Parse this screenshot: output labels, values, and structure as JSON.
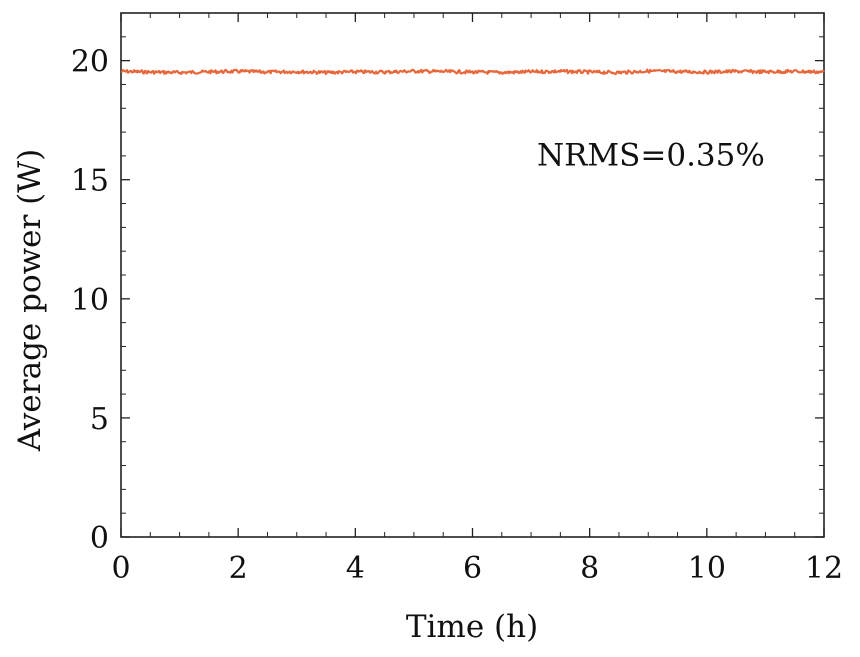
{
  "chart_data": {
    "type": "line",
    "title": "",
    "xlabel": "Time (h)",
    "ylabel": "Average power (W)",
    "xlim": [
      0,
      12
    ],
    "ylim": [
      0,
      22
    ],
    "xticks": [
      0,
      2,
      4,
      6,
      8,
      10,
      12
    ],
    "xtick_labels": [
      "0",
      "2",
      "4",
      "6",
      "8",
      "10",
      "12"
    ],
    "yticks": [
      0,
      5,
      10,
      15,
      20
    ],
    "ytick_labels": [
      "0",
      "5",
      "10",
      "15",
      "20"
    ],
    "grid": false,
    "series": [
      {
        "color": "#e8673a",
        "x": [
          0,
          0.5,
          1,
          1.5,
          2,
          2.5,
          3,
          3.5,
          4,
          4.5,
          5,
          5.5,
          6,
          6.5,
          7,
          7.5,
          8,
          8.5,
          9,
          9.5,
          10,
          10.5,
          11,
          11.5,
          12
        ],
        "y": [
          19.55,
          19.52,
          19.5,
          19.53,
          19.55,
          19.52,
          19.54,
          19.5,
          19.53,
          19.52,
          19.56,
          19.54,
          19.52,
          19.5,
          19.53,
          19.55,
          19.52,
          19.5,
          19.56,
          19.54,
          19.52,
          19.55,
          19.53,
          19.55,
          19.52
        ]
      }
    ],
    "annotations": [
      {
        "text": "NRMS=0.35%",
        "x": 7.1,
        "y": 15.6
      }
    ]
  }
}
